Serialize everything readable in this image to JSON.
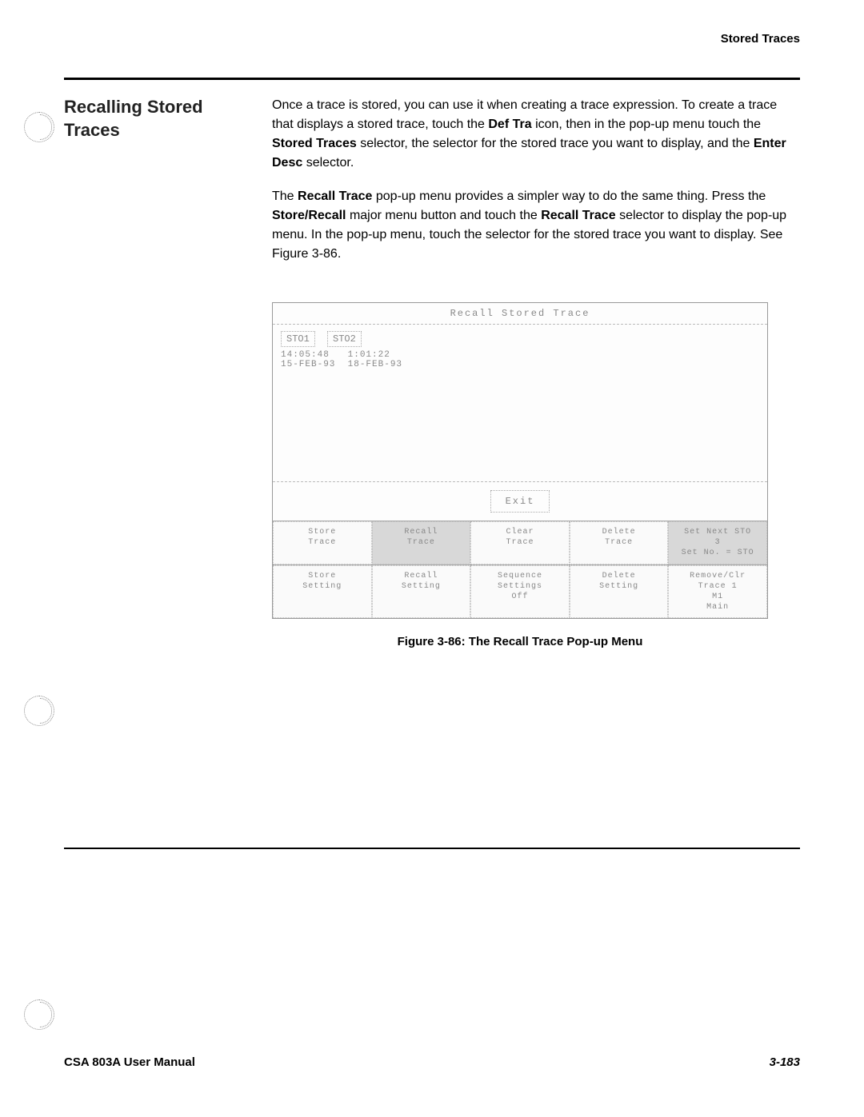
{
  "header": {
    "section": "Stored Traces"
  },
  "section_title": "Recalling Stored Traces",
  "paragraphs": {
    "p1_a": "Once a trace is stored, you can use it when creating a trace expression. To create a trace that displays a stored trace, touch the ",
    "p1_b": " icon, then in the pop-up menu touch the ",
    "p1_c": " selector, the selector for the stored trace you want to display, and the ",
    "p1_d": " selector.",
    "def_tra": "Def Tra",
    "stored_traces": "Stored Traces",
    "enter_desc": "Enter Desc",
    "p2_a": "The ",
    "p2_b": " pop-up menu provides a simpler way to do the same thing. Press the ",
    "p2_c": " major menu button and touch the ",
    "p2_d": " selector to display the pop-up menu. In the pop-up menu, touch the selector for the stored trace you want to display. See Figure 3-86.",
    "recall_trace": "Recall Trace",
    "store_recall": "Store/Recall"
  },
  "scope": {
    "title": "Recall Stored Trace",
    "sto1": "STO1",
    "sto2": "STO2",
    "time1": "14:05:48",
    "time2": "1:01:22",
    "date1": "15-FEB-93",
    "date2": "18-FEB-93",
    "exit": "Exit",
    "menu_row1": [
      "Store\nTrace",
      "Recall\nTrace",
      "Clear\nTrace",
      "Delete\nTrace",
      "Set Next STO\n3\nSet No. = STO"
    ],
    "menu_row2": [
      "Store\nSetting",
      "Recall\nSetting",
      "Sequence\nSettings\nOff",
      "Delete\nSetting",
      "Remove/Clr\nTrace 1\nM1\nMain"
    ]
  },
  "figure_caption": "Figure 3-86:  The Recall Trace Pop-up Menu",
  "footer": {
    "left": "CSA 803A User Manual",
    "right": "3-183"
  }
}
